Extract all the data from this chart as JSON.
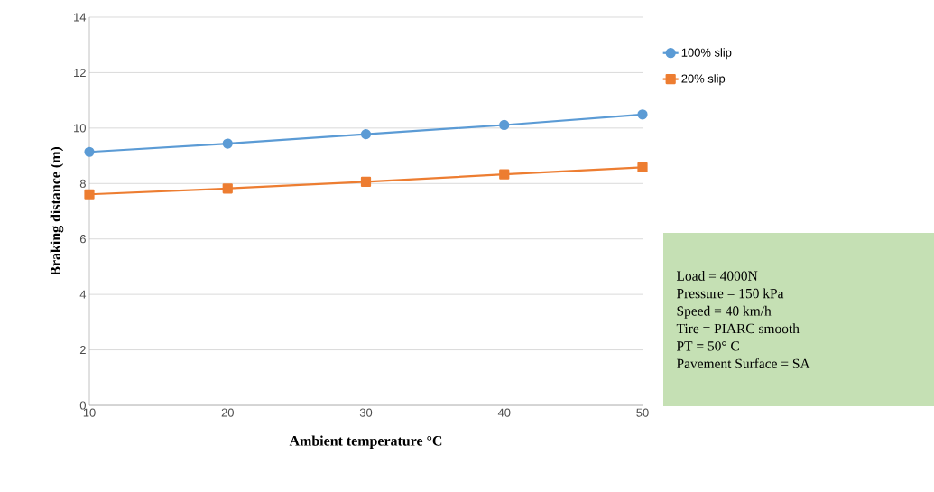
{
  "chart_data": {
    "type": "line",
    "xlabel": "Ambient temperature  °C",
    "ylabel": "Braking distance (m)",
    "x": [
      10,
      20,
      30,
      40,
      50
    ],
    "series": [
      {
        "name": "100% slip",
        "color": "#5b9bd5",
        "marker": "circle",
        "values": [
          9.14,
          9.44,
          9.78,
          10.11,
          10.49
        ]
      },
      {
        "name": "20% slip",
        "color": "#ed7d31",
        "marker": "square",
        "values": [
          7.61,
          7.82,
          8.06,
          8.33,
          8.58
        ]
      }
    ],
    "xlim": [
      10,
      50
    ],
    "ylim": [
      0,
      14
    ],
    "xticks": [
      10,
      20,
      30,
      40,
      50
    ],
    "yticks": [
      0,
      2,
      4,
      6,
      8,
      10,
      12,
      14
    ],
    "grid": "y",
    "legend": "right",
    "line_style": "solid",
    "annotations": [
      "Load = 4000N",
      "Pressure = 150 kPa",
      "Speed = 40 km/h",
      "Tire = PIARC smooth",
      "PT = 50° C",
      "Pavement Surface = SA"
    ]
  }
}
